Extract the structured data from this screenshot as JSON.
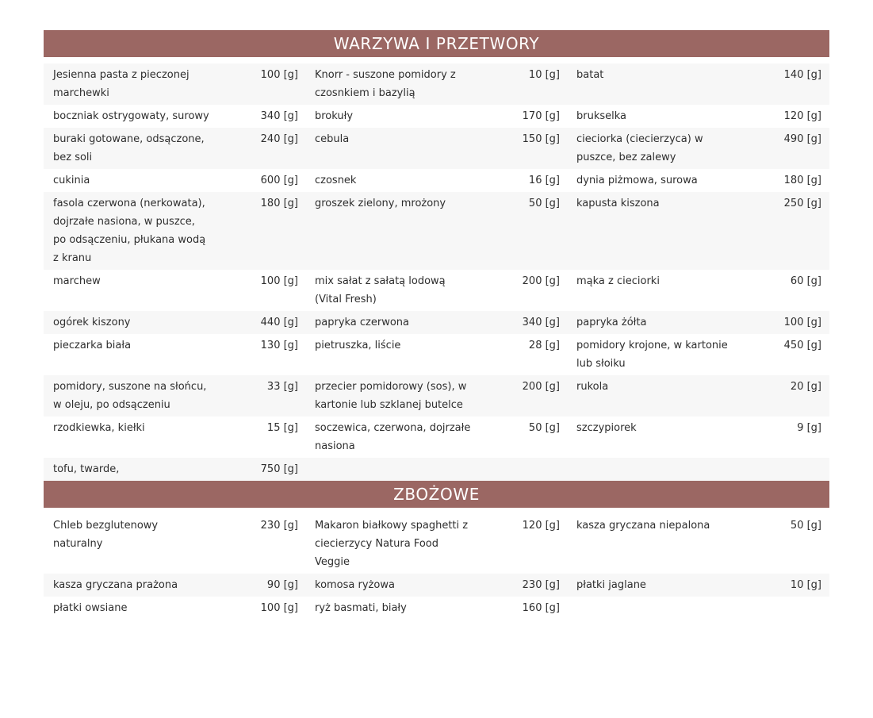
{
  "page": {
    "background": "#ffffff"
  },
  "table": {
    "header_bg": "#9b6763",
    "header_text_color": "#ffffff",
    "stripe_color": "#f7f7f7",
    "text_color": "#2e2e2e",
    "unit": "[g]",
    "sections": [
      {
        "title": "WARZYWA I PRZETWORY",
        "rows": [
          [
            {
              "name": "Jesienna pasta z pieczonej marchewki",
              "qty": "100 [g]"
            },
            {
              "name": "Knorr - suszone pomidory z czosnkiem i bazylią",
              "qty": "10 [g]"
            },
            {
              "name": "batat",
              "qty": "140 [g]"
            }
          ],
          [
            {
              "name": "boczniak ostrygowaty, surowy",
              "qty": "340 [g]"
            },
            {
              "name": "brokuły",
              "qty": "170 [g]"
            },
            {
              "name": "brukselka",
              "qty": "120 [g]"
            }
          ],
          [
            {
              "name": "buraki gotowane, odsączone, bez soli",
              "qty": "240 [g]"
            },
            {
              "name": "cebula",
              "qty": "150 [g]"
            },
            {
              "name": "cieciorka (ciecierzyca) w puszce, bez zalewy",
              "qty": "490 [g]"
            }
          ],
          [
            {
              "name": "cukinia",
              "qty": "600 [g]"
            },
            {
              "name": "czosnek",
              "qty": "16 [g]"
            },
            {
              "name": "dynia piżmowa, surowa",
              "qty": "180 [g]"
            }
          ],
          [
            {
              "name": "fasola czerwona (nerkowata), dojrzałe nasiona, w puszce, po odsączeniu, płukana wodą z kranu",
              "qty": "180 [g]"
            },
            {
              "name": "groszek zielony, mrożony",
              "qty": "50 [g]"
            },
            {
              "name": "kapusta kiszona",
              "qty": "250 [g]"
            }
          ],
          [
            {
              "name": "marchew",
              "qty": "100 [g]"
            },
            {
              "name": "mix sałat z sałatą lodową (Vital Fresh)",
              "qty": "200 [g]"
            },
            {
              "name": "mąka z cieciorki",
              "qty": "60 [g]"
            }
          ],
          [
            {
              "name": "ogórek kiszony",
              "qty": "440 [g]"
            },
            {
              "name": "papryka czerwona",
              "qty": "340 [g]"
            },
            {
              "name": "papryka żółta",
              "qty": "100 [g]"
            }
          ],
          [
            {
              "name": "pieczarka biała",
              "qty": "130 [g]"
            },
            {
              "name": "pietruszka, liście",
              "qty": "28 [g]"
            },
            {
              "name": "pomidory krojone, w kartonie lub słoiku",
              "qty": "450 [g]"
            }
          ],
          [
            {
              "name": "pomidory, suszone na słońcu, w oleju, po odsączeniu",
              "qty": "33 [g]"
            },
            {
              "name": "przecier pomidorowy (sos), w kartonie lub szklanej butelce",
              "qty": "200 [g]"
            },
            {
              "name": "rukola",
              "qty": "20 [g]"
            }
          ],
          [
            {
              "name": "rzodkiewka, kiełki",
              "qty": "15 [g]"
            },
            {
              "name": "soczewica, czerwona, dojrzałe nasiona",
              "qty": "50 [g]"
            },
            {
              "name": "szczypiorek",
              "qty": "9 [g]"
            }
          ],
          [
            {
              "name": "tofu, twarde,",
              "qty": "750 [g]"
            },
            null,
            null
          ]
        ]
      },
      {
        "title": "ZBOŻOWE",
        "rows": [
          [
            {
              "name": "Chleb bezglutenowy naturalny",
              "qty": "230 [g]"
            },
            {
              "name": "Makaron białkowy spaghetti z ciecierzycy Natura Food Veggie",
              "qty": "120 [g]"
            },
            {
              "name": "kasza gryczana niepalona",
              "qty": "50 [g]"
            }
          ],
          [
            {
              "name": "kasza gryczana prażona",
              "qty": "90 [g]"
            },
            {
              "name": "komosa ryżowa",
              "qty": "230 [g]"
            },
            {
              "name": "płatki jaglane",
              "qty": "10 [g]"
            }
          ],
          [
            {
              "name": "płatki owsiane",
              "qty": "100 [g]"
            },
            {
              "name": "ryż basmati, biały",
              "qty": "160 [g]"
            },
            null
          ]
        ]
      }
    ]
  }
}
